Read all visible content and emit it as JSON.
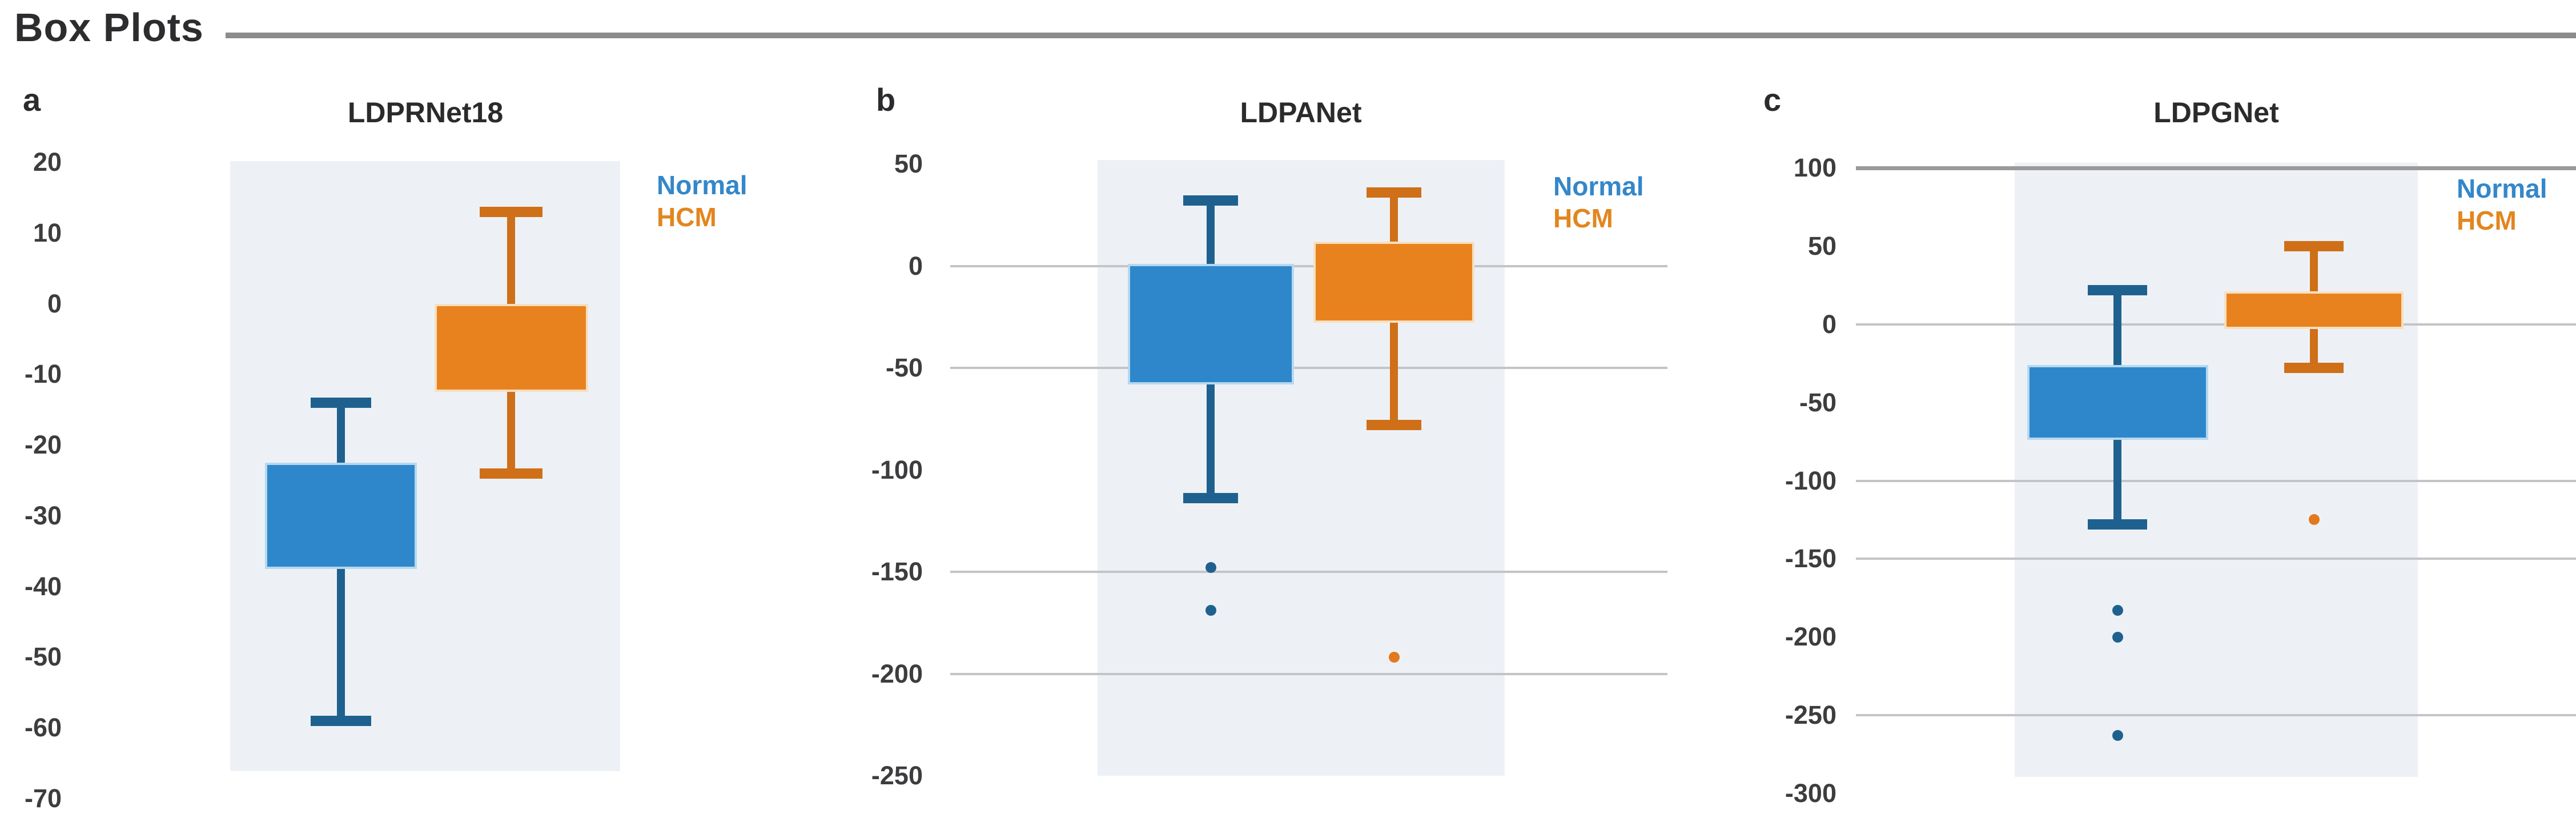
{
  "header": {
    "title": "Box Plots"
  },
  "legend": {
    "normal": "Normal",
    "hcm": "HCM"
  },
  "colors": {
    "normal": {
      "fill": "#2e87ca",
      "edge": "#b5d8f0",
      "whisker": "#1f618e",
      "dot": "#1f618e",
      "legend": "#3487c9"
    },
    "hcm": {
      "fill": "#e8821e",
      "edge": "#f8dfc0",
      "whisker": "#cf6f17",
      "dot": "#e2791d",
      "legend": "#e2861f"
    }
  },
  "chart_data": [
    {
      "type": "box",
      "panel_label": "a",
      "title": "LDPRNet18",
      "ylim": [
        -70,
        20
      ],
      "yticks": [
        20,
        10,
        0,
        -10,
        -20,
        -30,
        -40,
        -50,
        -60,
        -70
      ],
      "gridlines": [],
      "strong_gridlines": [],
      "legend_position": "right-top",
      "series": [
        {
          "name": "Normal",
          "color_key": "normal",
          "whisker_low": -59,
          "q1": -37.5,
          "median": null,
          "q3": -22.5,
          "whisker_high": -14,
          "outliers": []
        },
        {
          "name": "HCM",
          "color_key": "hcm",
          "whisker_low": -24,
          "q1": -12.5,
          "median": null,
          "q3": 0,
          "whisker_high": 13,
          "outliers": []
        }
      ]
    },
    {
      "type": "box",
      "panel_label": "b",
      "title": "LDPANet",
      "ylim": [
        -250,
        50
      ],
      "yticks": [
        50,
        0,
        -50,
        -100,
        -150,
        -200,
        -250
      ],
      "gridlines": [
        0,
        -50,
        -150,
        -200
      ],
      "strong_gridlines": [],
      "legend_position": "right-top",
      "series": [
        {
          "name": "Normal",
          "color_key": "normal",
          "whisker_low": -114,
          "q1": -58,
          "median": null,
          "q3": 1,
          "whisker_high": 32,
          "outliers": [
            -148,
            -169
          ]
        },
        {
          "name": "HCM",
          "color_key": "hcm",
          "whisker_low": -78,
          "q1": -28,
          "median": null,
          "q3": 12,
          "whisker_high": 36,
          "outliers": [
            -192
          ]
        }
      ]
    },
    {
      "type": "box",
      "panel_label": "c",
      "title": "LDPGNet",
      "ylim": [
        -300,
        100
      ],
      "yticks": [
        100,
        50,
        0,
        -50,
        -100,
        -150,
        -200,
        -250,
        -300
      ],
      "gridlines": [
        100,
        0,
        -100,
        -150,
        -250
      ],
      "strong_gridlines": [
        100
      ],
      "legend_position": "right-top",
      "series": [
        {
          "name": "Normal",
          "color_key": "normal",
          "whisker_low": -128,
          "q1": -74,
          "median": null,
          "q3": -26,
          "whisker_high": 22,
          "outliers": [
            -183,
            -200,
            -263
          ]
        },
        {
          "name": "HCM",
          "color_key": "hcm",
          "whisker_low": -28,
          "q1": -3,
          "median": null,
          "q3": 21,
          "whisker_high": 50,
          "outliers": [
            -125
          ]
        }
      ]
    }
  ]
}
